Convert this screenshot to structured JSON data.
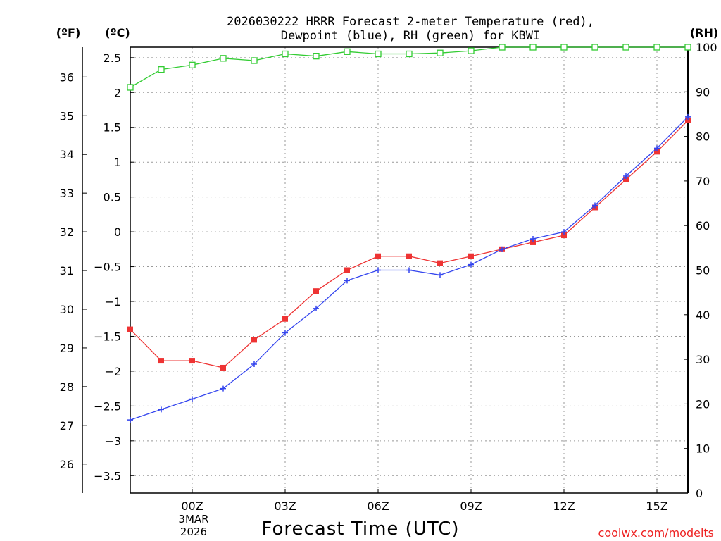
{
  "chart_data": {
    "type": "line",
    "title_line1": "2026030222 HRRR Forecast 2-meter Temperature (red),",
    "title_line2": "Dewpoint (blue), RH (green) for KBWI",
    "xlabel": "Forecast Time (UTC)",
    "credit": "coolwx.com/modelts",
    "unit_f": "(ºF)",
    "unit_c": "(ºC)",
    "unit_rh": "(RH)",
    "x_range": [
      -2,
      16
    ],
    "x_ticks": [
      {
        "x": 0,
        "label": "00Z"
      },
      {
        "x": 3,
        "label": "03Z"
      },
      {
        "x": 6,
        "label": "06Z"
      },
      {
        "x": 9,
        "label": "09Z"
      },
      {
        "x": 12,
        "label": "12Z"
      },
      {
        "x": 15,
        "label": "15Z"
      }
    ],
    "date_line1": "3MAR",
    "date_line2": "2026",
    "ylim_c": [
      -3.75,
      2.65
    ],
    "y_ticks_c": [
      "-3.5",
      "-3",
      "-2.5",
      "-2",
      "-1.5",
      "-1",
      "-0.5",
      "0",
      "0.5",
      "1",
      "1.5",
      "2",
      "2.5"
    ],
    "y_ticks_f": [
      "26",
      "27",
      "28",
      "29",
      "30",
      "31",
      "32",
      "33",
      "34",
      "35",
      "36"
    ],
    "ylim_rh": [
      0,
      100
    ],
    "y_ticks_rh": [
      "0",
      "10",
      "20",
      "30",
      "40",
      "50",
      "60",
      "70",
      "80",
      "90",
      "100"
    ],
    "x": [
      -2,
      -1,
      0,
      1,
      2,
      3,
      4,
      5,
      6,
      7,
      8,
      9,
      10,
      11,
      12,
      13,
      14,
      15,
      16
    ],
    "series": [
      {
        "name": "Temperature",
        "unit": "C",
        "color": "#ee3333",
        "values": [
          -1.4,
          -1.85,
          -1.85,
          -1.95,
          -1.55,
          -1.25,
          -0.85,
          -0.55,
          -0.35,
          -0.35,
          -0.45,
          -0.35,
          -0.25,
          -0.15,
          -0.05,
          0.35,
          0.75,
          1.15,
          1.6
        ]
      },
      {
        "name": "Dewpoint",
        "unit": "C",
        "color": "#3344ee",
        "values": [
          -2.7,
          -2.55,
          -2.4,
          -2.25,
          -1.9,
          -1.45,
          -1.1,
          -0.7,
          -0.55,
          -0.55,
          -0.62,
          -0.47,
          -0.25,
          -0.1,
          0.0,
          0.38,
          0.8,
          1.2,
          1.65
        ]
      },
      {
        "name": "RH",
        "unit": "%",
        "color": "#33cc33",
        "values": [
          91,
          95,
          96,
          97.5,
          97,
          98.5,
          98,
          99,
          98.5,
          98.5,
          98.7,
          99.2,
          100,
          100,
          100,
          100,
          100,
          100,
          100
        ]
      }
    ]
  }
}
